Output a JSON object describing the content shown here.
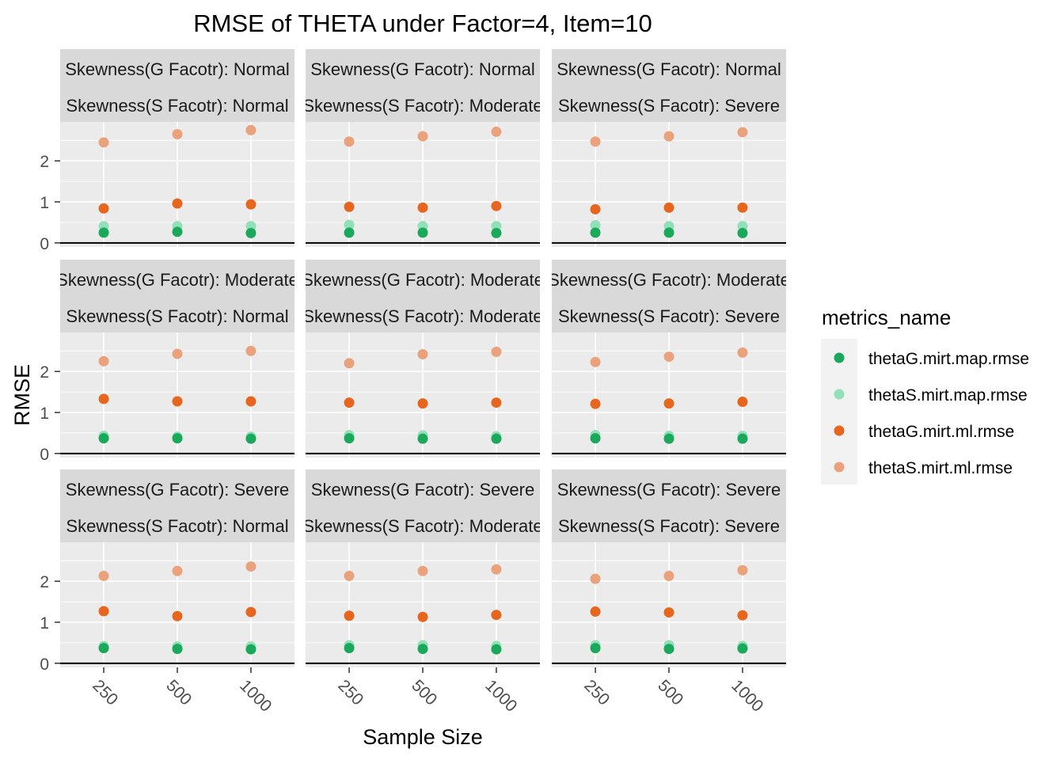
{
  "chart_data": {
    "type": "scatter",
    "title": "RMSE of THETA under Factor=4, Item=10",
    "xlabel": "Sample Size",
    "ylabel": "RMSE",
    "x_categories": [
      "250",
      "500",
      "1000"
    ],
    "y_ticks": [
      0,
      1,
      2
    ],
    "ylim": [
      -0.1,
      2.95
    ],
    "grid": true,
    "legend": {
      "title": "metrics_name",
      "position": "right",
      "entries": [
        {
          "name": "thetaG.mirt.map.rmse",
          "color": "#1aa85a"
        },
        {
          "name": "thetaS.mirt.map.rmse",
          "color": "#92e0b8"
        },
        {
          "name": "thetaG.mirt.ml.rmse",
          "color": "#e6661e"
        },
        {
          "name": "thetaS.mirt.ml.rmse",
          "color": "#e9a27c"
        }
      ]
    },
    "strip_colors": {
      "background": "#d9d9d9",
      "panel": "#ebebeb",
      "grid": "#ffffff"
    },
    "panels": [
      {
        "row": 0,
        "col": 0,
        "g_label": "Skewness(G Facotr): Normal",
        "s_label": "Skewness(S Facotr): Normal",
        "series": {
          "thetaG.mirt.map.rmse": [
            0.25,
            0.27,
            0.24
          ],
          "thetaS.mirt.map.rmse": [
            0.41,
            0.41,
            0.41
          ],
          "thetaG.mirt.ml.rmse": [
            0.84,
            0.96,
            0.94
          ],
          "thetaS.mirt.ml.rmse": [
            2.45,
            2.65,
            2.75
          ]
        }
      },
      {
        "row": 0,
        "col": 1,
        "g_label": "Skewness(G Facotr): Normal",
        "s_label": "Skewness(S Facotr): Moderate",
        "series": {
          "thetaG.mirt.map.rmse": [
            0.25,
            0.25,
            0.24
          ],
          "thetaS.mirt.map.rmse": [
            0.44,
            0.41,
            0.41
          ],
          "thetaG.mirt.ml.rmse": [
            0.88,
            0.86,
            0.9
          ],
          "thetaS.mirt.ml.rmse": [
            2.47,
            2.6,
            2.71
          ]
        }
      },
      {
        "row": 0,
        "col": 2,
        "g_label": "Skewness(G Facotr): Normal",
        "s_label": "Skewness(S Facotr): Severe",
        "series": {
          "thetaG.mirt.map.rmse": [
            0.25,
            0.25,
            0.24
          ],
          "thetaS.mirt.map.rmse": [
            0.43,
            0.41,
            0.41
          ],
          "thetaG.mirt.ml.rmse": [
            0.82,
            0.86,
            0.86
          ],
          "thetaS.mirt.ml.rmse": [
            2.47,
            2.6,
            2.7
          ]
        }
      },
      {
        "row": 1,
        "col": 0,
        "g_label": "Skewness(G Facotr): Moderate",
        "s_label": "Skewness(S Facotr): Normal",
        "series": {
          "thetaG.mirt.map.rmse": [
            0.37,
            0.37,
            0.36
          ],
          "thetaS.mirt.map.rmse": [
            0.43,
            0.41,
            0.41
          ],
          "thetaG.mirt.ml.rmse": [
            1.33,
            1.27,
            1.27
          ],
          "thetaS.mirt.ml.rmse": [
            2.25,
            2.43,
            2.5
          ]
        }
      },
      {
        "row": 1,
        "col": 1,
        "g_label": "Skewness(G Facotr): Moderate",
        "s_label": "Skewness(S Facotr): Moderate",
        "series": {
          "thetaG.mirt.map.rmse": [
            0.37,
            0.36,
            0.36
          ],
          "thetaS.mirt.map.rmse": [
            0.45,
            0.44,
            0.42
          ],
          "thetaG.mirt.ml.rmse": [
            1.24,
            1.22,
            1.24
          ],
          "thetaS.mirt.ml.rmse": [
            2.2,
            2.42,
            2.48
          ]
        }
      },
      {
        "row": 1,
        "col": 2,
        "g_label": "Skewness(G Facotr): Moderate",
        "s_label": "Skewness(S Facotr): Severe",
        "series": {
          "thetaG.mirt.map.rmse": [
            0.37,
            0.36,
            0.36
          ],
          "thetaS.mirt.map.rmse": [
            0.45,
            0.43,
            0.43
          ],
          "thetaG.mirt.ml.rmse": [
            1.21,
            1.22,
            1.26
          ],
          "thetaS.mirt.ml.rmse": [
            2.23,
            2.36,
            2.46
          ]
        }
      },
      {
        "row": 2,
        "col": 0,
        "g_label": "Skewness(G Facotr): Severe",
        "s_label": "Skewness(S Facotr): Normal",
        "series": {
          "thetaG.mirt.map.rmse": [
            0.37,
            0.35,
            0.34
          ],
          "thetaS.mirt.map.rmse": [
            0.42,
            0.41,
            0.41
          ],
          "thetaG.mirt.ml.rmse": [
            1.27,
            1.15,
            1.25
          ],
          "thetaS.mirt.ml.rmse": [
            2.13,
            2.25,
            2.36
          ]
        }
      },
      {
        "row": 2,
        "col": 1,
        "g_label": "Skewness(G Facotr): Severe",
        "s_label": "Skewness(S Facotr): Moderate",
        "series": {
          "thetaG.mirt.map.rmse": [
            0.37,
            0.35,
            0.34
          ],
          "thetaS.mirt.map.rmse": [
            0.44,
            0.44,
            0.42
          ],
          "thetaG.mirt.ml.rmse": [
            1.16,
            1.13,
            1.18
          ],
          "thetaS.mirt.ml.rmse": [
            2.13,
            2.25,
            2.29
          ]
        }
      },
      {
        "row": 2,
        "col": 2,
        "g_label": "Skewness(G Facotr): Severe",
        "s_label": "Skewness(S Facotr): Severe",
        "series": {
          "thetaG.mirt.map.rmse": [
            0.37,
            0.35,
            0.36
          ],
          "thetaS.mirt.map.rmse": [
            0.44,
            0.44,
            0.42
          ],
          "thetaG.mirt.ml.rmse": [
            1.26,
            1.24,
            1.17
          ],
          "thetaS.mirt.ml.rmse": [
            2.06,
            2.13,
            2.27
          ]
        }
      }
    ]
  }
}
